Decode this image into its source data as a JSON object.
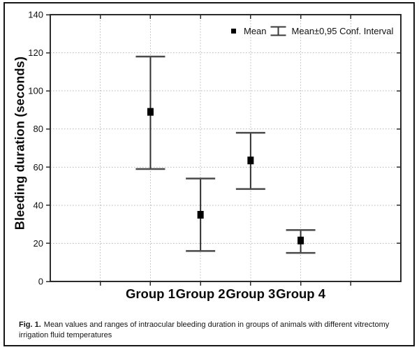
{
  "figure": {
    "caption_prefix": "Fig. 1.",
    "caption_line1": "Mean values and ranges of intraocular bleeding duration in groups of animals with different vitrectomy",
    "caption_line2": "irrigation fluid temperatures"
  },
  "legend": {
    "mean_label": "Mean",
    "ci_label": "Mean±0,95 Conf. Interval"
  },
  "chart_data": {
    "type": "scatter",
    "subtype": "means-with-error-bars",
    "title": "",
    "xlabel": "",
    "ylabel": "Bleeding duration (seconds)",
    "categories": [
      "Group 1",
      "Group 2",
      "Group 3",
      "Group 4"
    ],
    "series": [
      {
        "name": "Mean",
        "values": [
          89,
          35,
          63.5,
          21.5
        ]
      },
      {
        "name": "Mean-0,95 Conf. Interval (lower)",
        "values": [
          59,
          16,
          48.5,
          15
        ]
      },
      {
        "name": "Mean+0,95 Conf. Interval (upper)",
        "values": [
          118,
          54,
          78,
          27
        ]
      }
    ],
    "ylim": [
      0,
      140
    ],
    "yticks": [
      0,
      20,
      40,
      60,
      80,
      100,
      120,
      140
    ],
    "grid": "dotted horizontal and vertical gridlines",
    "legend_position": "inside top-right",
    "marker": "filled black square",
    "colors": {
      "marker": "#000000",
      "bar_line": "#303030",
      "cap_line": "#4a4a4a",
      "gridline": "#b8b8b8",
      "axis": "#2b2b2b",
      "text": "#111111"
    }
  }
}
